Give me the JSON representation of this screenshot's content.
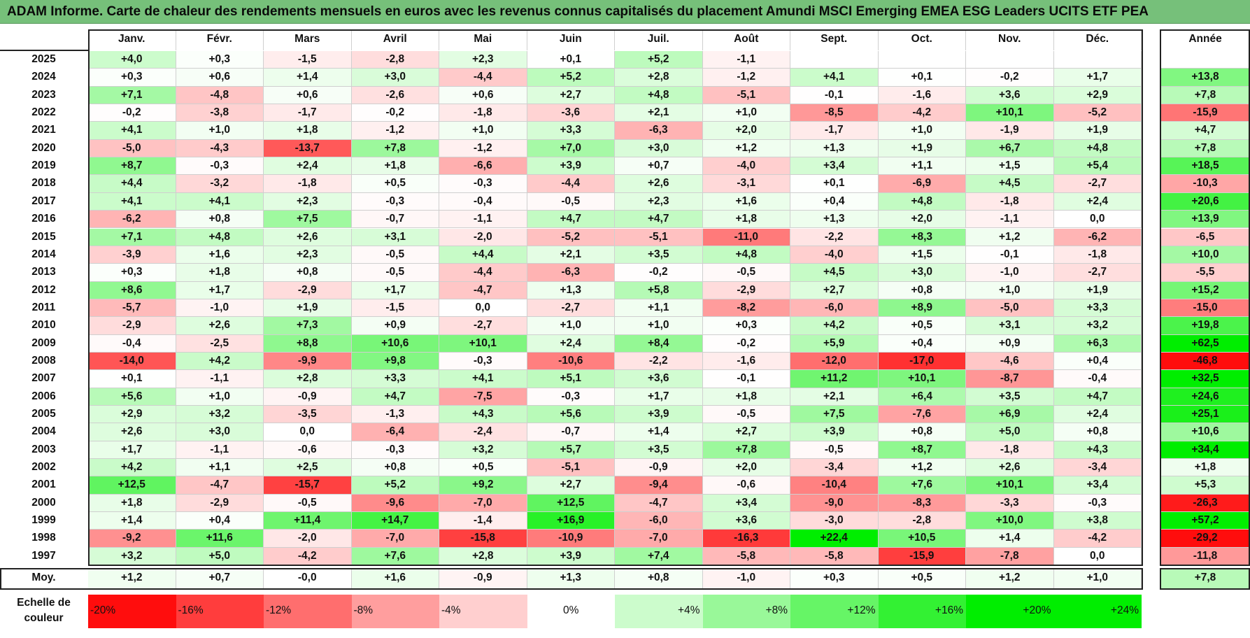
{
  "title": "ADAM Informe. Carte de chaleur des rendements mensuels en euros avec les revenus connus capitalisés du placement Amundi MSCI Emerging EMEA ESG Leaders UCITS ETF PEA",
  "chart_data": {
    "type": "heatmap",
    "title": "ADAM Informe. Carte de chaleur des rendements mensuels en euros avec les revenus connus capitalisés du placement Amundi MSCI Emerging EMEA ESG Leaders UCITS ETF PEA",
    "columns": [
      "Janv.",
      "Févr.",
      "Mars",
      "Avril",
      "Mai",
      "Juin",
      "Juil.",
      "Août",
      "Sept.",
      "Oct.",
      "Nov.",
      "Déc."
    ],
    "year_header": "Année",
    "rows": [
      {
        "year": "2025",
        "values": [
          "+4,0",
          "+0,3",
          "-1,5",
          "-2,8",
          "+2,3",
          "+0,1",
          "+5,2",
          "-1,1",
          "",
          "",
          "",
          ""
        ],
        "annual": ""
      },
      {
        "year": "2024",
        "values": [
          "+0,3",
          "+0,6",
          "+1,4",
          "+3,0",
          "-4,4",
          "+5,2",
          "+2,8",
          "-1,2",
          "+4,1",
          "+0,1",
          "-0,2",
          "+1,7"
        ],
        "annual": "+13,8"
      },
      {
        "year": "2023",
        "values": [
          "+7,1",
          "-4,8",
          "+0,6",
          "-2,6",
          "+0,6",
          "+2,7",
          "+4,8",
          "-5,1",
          "-0,1",
          "-1,6",
          "+3,6",
          "+2,9"
        ],
        "annual": "+7,8"
      },
      {
        "year": "2022",
        "values": [
          "-0,2",
          "-3,8",
          "-1,7",
          "-0,2",
          "-1,8",
          "-3,6",
          "+2,1",
          "+1,0",
          "-8,5",
          "-4,2",
          "+10,1",
          "-5,2"
        ],
        "annual": "-15,9"
      },
      {
        "year": "2021",
        "values": [
          "+4,1",
          "+1,0",
          "+1,8",
          "-1,2",
          "+1,0",
          "+3,3",
          "-6,3",
          "+2,0",
          "-1,7",
          "+1,0",
          "-1,9",
          "+1,9"
        ],
        "annual": "+4,7"
      },
      {
        "year": "2020",
        "values": [
          "-5,0",
          "-4,3",
          "-13,7",
          "+7,8",
          "-1,2",
          "+7,0",
          "+3,0",
          "+1,2",
          "+1,3",
          "+1,9",
          "+6,7",
          "+4,8"
        ],
        "annual": "+7,8"
      },
      {
        "year": "2019",
        "values": [
          "+8,7",
          "-0,3",
          "+2,4",
          "+1,8",
          "-6,6",
          "+3,9",
          "+0,7",
          "-4,0",
          "+3,4",
          "+1,1",
          "+1,5",
          "+5,4"
        ],
        "annual": "+18,5"
      },
      {
        "year": "2018",
        "values": [
          "+4,4",
          "-3,2",
          "-1,8",
          "+0,5",
          "-0,3",
          "-4,4",
          "+2,6",
          "-3,1",
          "+0,1",
          "-6,9",
          "+4,5",
          "-2,7"
        ],
        "annual": "-10,3"
      },
      {
        "year": "2017",
        "values": [
          "+4,1",
          "+4,1",
          "+2,3",
          "-0,3",
          "-0,4",
          "-0,5",
          "+2,3",
          "+1,6",
          "+0,4",
          "+4,8",
          "-1,8",
          "+2,4"
        ],
        "annual": "+20,6"
      },
      {
        "year": "2016",
        "values": [
          "-6,2",
          "+0,8",
          "+7,5",
          "-0,7",
          "-1,1",
          "+4,7",
          "+4,7",
          "+1,8",
          "+1,3",
          "+2,0",
          "-1,1",
          "0,0"
        ],
        "annual": "+13,9"
      },
      {
        "year": "2015",
        "values": [
          "+7,1",
          "+4,8",
          "+2,6",
          "+3,1",
          "-2,0",
          "-5,2",
          "-5,1",
          "-11,0",
          "-2,2",
          "+8,3",
          "+1,2",
          "-6,2"
        ],
        "annual": "-6,5"
      },
      {
        "year": "2014",
        "values": [
          "-3,9",
          "+1,6",
          "+2,3",
          "-0,5",
          "+4,4",
          "+2,1",
          "+3,5",
          "+4,8",
          "-4,0",
          "+1,5",
          "-0,1",
          "-1,8"
        ],
        "annual": "+10,0"
      },
      {
        "year": "2013",
        "values": [
          "+0,3",
          "+1,8",
          "+0,8",
          "-0,5",
          "-4,4",
          "-6,3",
          "-0,2",
          "-0,5",
          "+4,5",
          "+3,0",
          "-1,0",
          "-2,7"
        ],
        "annual": "-5,5"
      },
      {
        "year": "2012",
        "values": [
          "+8,6",
          "+1,7",
          "-2,9",
          "+1,7",
          "-4,7",
          "+1,3",
          "+5,8",
          "-2,9",
          "+2,7",
          "+0,8",
          "+1,0",
          "+1,9"
        ],
        "annual": "+15,2"
      },
      {
        "year": "2011",
        "values": [
          "-5,7",
          "-1,0",
          "+1,9",
          "-1,5",
          "0,0",
          "-2,7",
          "+1,1",
          "-8,2",
          "-6,0",
          "+8,9",
          "-5,0",
          "+3,3"
        ],
        "annual": "-15,0"
      },
      {
        "year": "2010",
        "values": [
          "-2,9",
          "+2,6",
          "+7,3",
          "+0,9",
          "-2,7",
          "+1,0",
          "+1,0",
          "+0,3",
          "+4,2",
          "+0,5",
          "+3,1",
          "+3,2"
        ],
        "annual": "+19,8"
      },
      {
        "year": "2009",
        "values": [
          "-0,4",
          "-2,5",
          "+8,8",
          "+10,6",
          "+10,1",
          "+2,4",
          "+8,4",
          "-0,2",
          "+5,9",
          "+0,4",
          "+0,9",
          "+6,3"
        ],
        "annual": "+62,5"
      },
      {
        "year": "2008",
        "values": [
          "-14,0",
          "+4,2",
          "-9,9",
          "+9,8",
          "-0,3",
          "-10,6",
          "-2,2",
          "-1,6",
          "-12,0",
          "-17,0",
          "-4,6",
          "+0,4"
        ],
        "annual": "-46,8"
      },
      {
        "year": "2007",
        "values": [
          "+0,1",
          "-1,1",
          "+2,8",
          "+3,3",
          "+4,1",
          "+5,1",
          "+3,6",
          "-0,1",
          "+11,2",
          "+10,1",
          "-8,7",
          "-0,4"
        ],
        "annual": "+32,5"
      },
      {
        "year": "2006",
        "values": [
          "+5,6",
          "+1,0",
          "-0,9",
          "+4,7",
          "-7,5",
          "-0,3",
          "+1,7",
          "+1,8",
          "+2,1",
          "+6,4",
          "+3,5",
          "+4,7"
        ],
        "annual": "+24,6"
      },
      {
        "year": "2005",
        "values": [
          "+2,9",
          "+3,2",
          "-3,5",
          "-1,3",
          "+4,3",
          "+5,6",
          "+3,9",
          "-0,5",
          "+7,5",
          "-7,6",
          "+6,9",
          "+2,4"
        ],
        "annual": "+25,1"
      },
      {
        "year": "2004",
        "values": [
          "+2,6",
          "+3,0",
          "0,0",
          "-6,4",
          "-2,4",
          "-0,7",
          "+1,4",
          "+2,7",
          "+3,9",
          "+0,8",
          "+5,0",
          "+0,8"
        ],
        "annual": "+10,6"
      },
      {
        "year": "2003",
        "values": [
          "+1,7",
          "-1,1",
          "-0,6",
          "-0,3",
          "+3,2",
          "+5,7",
          "+3,5",
          "+7,8",
          "-0,5",
          "+8,7",
          "-1,8",
          "+4,3"
        ],
        "annual": "+34,4"
      },
      {
        "year": "2002",
        "values": [
          "+4,2",
          "+1,1",
          "+2,5",
          "+0,8",
          "+0,5",
          "-5,1",
          "-0,9",
          "+2,0",
          "-3,4",
          "+1,2",
          "+2,6",
          "-3,4"
        ],
        "annual": "+1,8"
      },
      {
        "year": "2001",
        "values": [
          "+12,5",
          "-4,7",
          "-15,7",
          "+5,2",
          "+9,2",
          "+2,7",
          "-9,4",
          "-0,6",
          "-10,4",
          "+7,6",
          "+10,1",
          "+3,4"
        ],
        "annual": "+5,3"
      },
      {
        "year": "2000",
        "values": [
          "+1,8",
          "-2,9",
          "-0,5",
          "-9,6",
          "-7,0",
          "+12,5",
          "-4,7",
          "+3,4",
          "-9,0",
          "-8,3",
          "-3,3",
          "-0,3"
        ],
        "annual": "-26,3"
      },
      {
        "year": "1999",
        "values": [
          "+1,4",
          "+0,4",
          "+11,4",
          "+14,7",
          "-1,4",
          "+16,9",
          "-6,0",
          "+3,6",
          "-3,0",
          "-2,8",
          "+10,0",
          "+3,8"
        ],
        "annual": "+57,2"
      },
      {
        "year": "1998",
        "values": [
          "-9,2",
          "+11,6",
          "-2,0",
          "-7,0",
          "-15,8",
          "-10,9",
          "-7,0",
          "-16,3",
          "+22,4",
          "+10,5",
          "+1,4",
          "-4,2"
        ],
        "annual": "-29,2"
      },
      {
        "year": "1997",
        "values": [
          "+3,2",
          "+5,0",
          "-4,2",
          "+7,6",
          "+2,8",
          "+3,9",
          "+7,4",
          "-5,8",
          "-5,8",
          "-15,9",
          "-7,8",
          "0,0"
        ],
        "annual": "-11,8"
      }
    ],
    "average": {
      "label": "Moy.",
      "values": [
        "+1,2",
        "+0,7",
        "-0,0",
        "+1,6",
        "-0,9",
        "+1,3",
        "+0,8",
        "-1,0",
        "+0,3",
        "+0,5",
        "+1,2",
        "+1,0"
      ],
      "annual": "+7,8"
    },
    "scale": {
      "label": "Echelle de couleur",
      "stops": [
        {
          "text": "-20%",
          "value": -20
        },
        {
          "text": "-16%",
          "value": -16
        },
        {
          "text": "-12%",
          "value": -12
        },
        {
          "text": "-8%",
          "value": -8
        },
        {
          "text": "-4%",
          "value": -4
        },
        {
          "text": "0%",
          "value": 0
        },
        {
          "text": "+4%",
          "value": 4
        },
        {
          "text": "+8%",
          "value": 8
        },
        {
          "text": "+12%",
          "value": 12
        },
        {
          "text": "+16%",
          "value": 16
        },
        {
          "text": "+20%",
          "value": 20
        },
        {
          "text": "+24%",
          "value": 24
        }
      ]
    },
    "colors": {
      "negative": "#ff0000",
      "neutral": "#ffffff",
      "positive": "#00ee00"
    }
  }
}
